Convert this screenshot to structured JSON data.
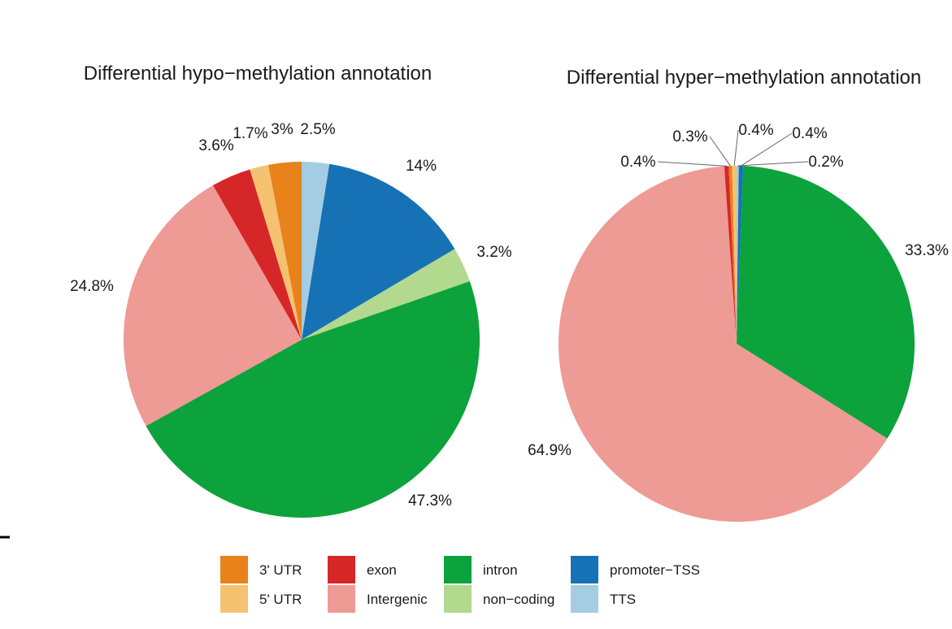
{
  "chart_data": [
    {
      "type": "pie",
      "title": "Differential hypo−methylation annotation",
      "slices": [
        {
          "key": "TTS",
          "value": 2.5,
          "label": "2.5%"
        },
        {
          "key": "promoter-TSS",
          "value": 14.0,
          "label": "14%"
        },
        {
          "key": "non-coding",
          "value": 3.2,
          "label": "3.2%"
        },
        {
          "key": "intron",
          "value": 47.3,
          "label": "47.3%"
        },
        {
          "key": "Intergenic",
          "value": 24.8,
          "label": "24.8%"
        },
        {
          "key": "exon",
          "value": 3.6,
          "label": "3.6%"
        },
        {
          "key": "5' UTR",
          "value": 1.7,
          "label": "1.7%"
        },
        {
          "key": "3' UTR",
          "value": 3.0,
          "label": "3%"
        }
      ]
    },
    {
      "type": "pie",
      "title": "Differential hyper−methylation annotation",
      "slices": [
        {
          "key": "TTS",
          "value": 0.2,
          "label": "0.2%"
        },
        {
          "key": "promoter-TSS",
          "value": 0.4,
          "label": "0.4%"
        },
        {
          "key": "intron",
          "value": 33.3,
          "label": "33.3%"
        },
        {
          "key": "Intergenic",
          "value": 64.9,
          "label": "64.9%"
        },
        {
          "key": "exon",
          "value": 0.4,
          "label": "0.4%"
        },
        {
          "key": "3' UTR",
          "value": 0.3,
          "label": "0.3%"
        },
        {
          "key": "5' UTR",
          "value": 0.4,
          "label": "0.4%"
        }
      ]
    }
  ],
  "legend": {
    "placement": "bottom",
    "items": [
      {
        "key": "3' UTR",
        "label": "3' UTR",
        "color": "#e8821a"
      },
      {
        "key": "5' UTR",
        "label": "5' UTR",
        "color": "#f5c272"
      },
      {
        "key": "exon",
        "label": "exon",
        "color": "#d62728"
      },
      {
        "key": "Intergenic",
        "label": "Intergenic",
        "color": "#ee9a95"
      },
      {
        "key": "intron",
        "label": "intron",
        "color": "#0ca23c"
      },
      {
        "key": "non-coding",
        "label": "non−coding",
        "color": "#b2d98e"
      },
      {
        "key": "promoter-TSS",
        "label": "promoter−TSS",
        "color": "#1672b5"
      },
      {
        "key": "TTS",
        "label": "TTS",
        "color": "#a4cde3"
      }
    ]
  }
}
